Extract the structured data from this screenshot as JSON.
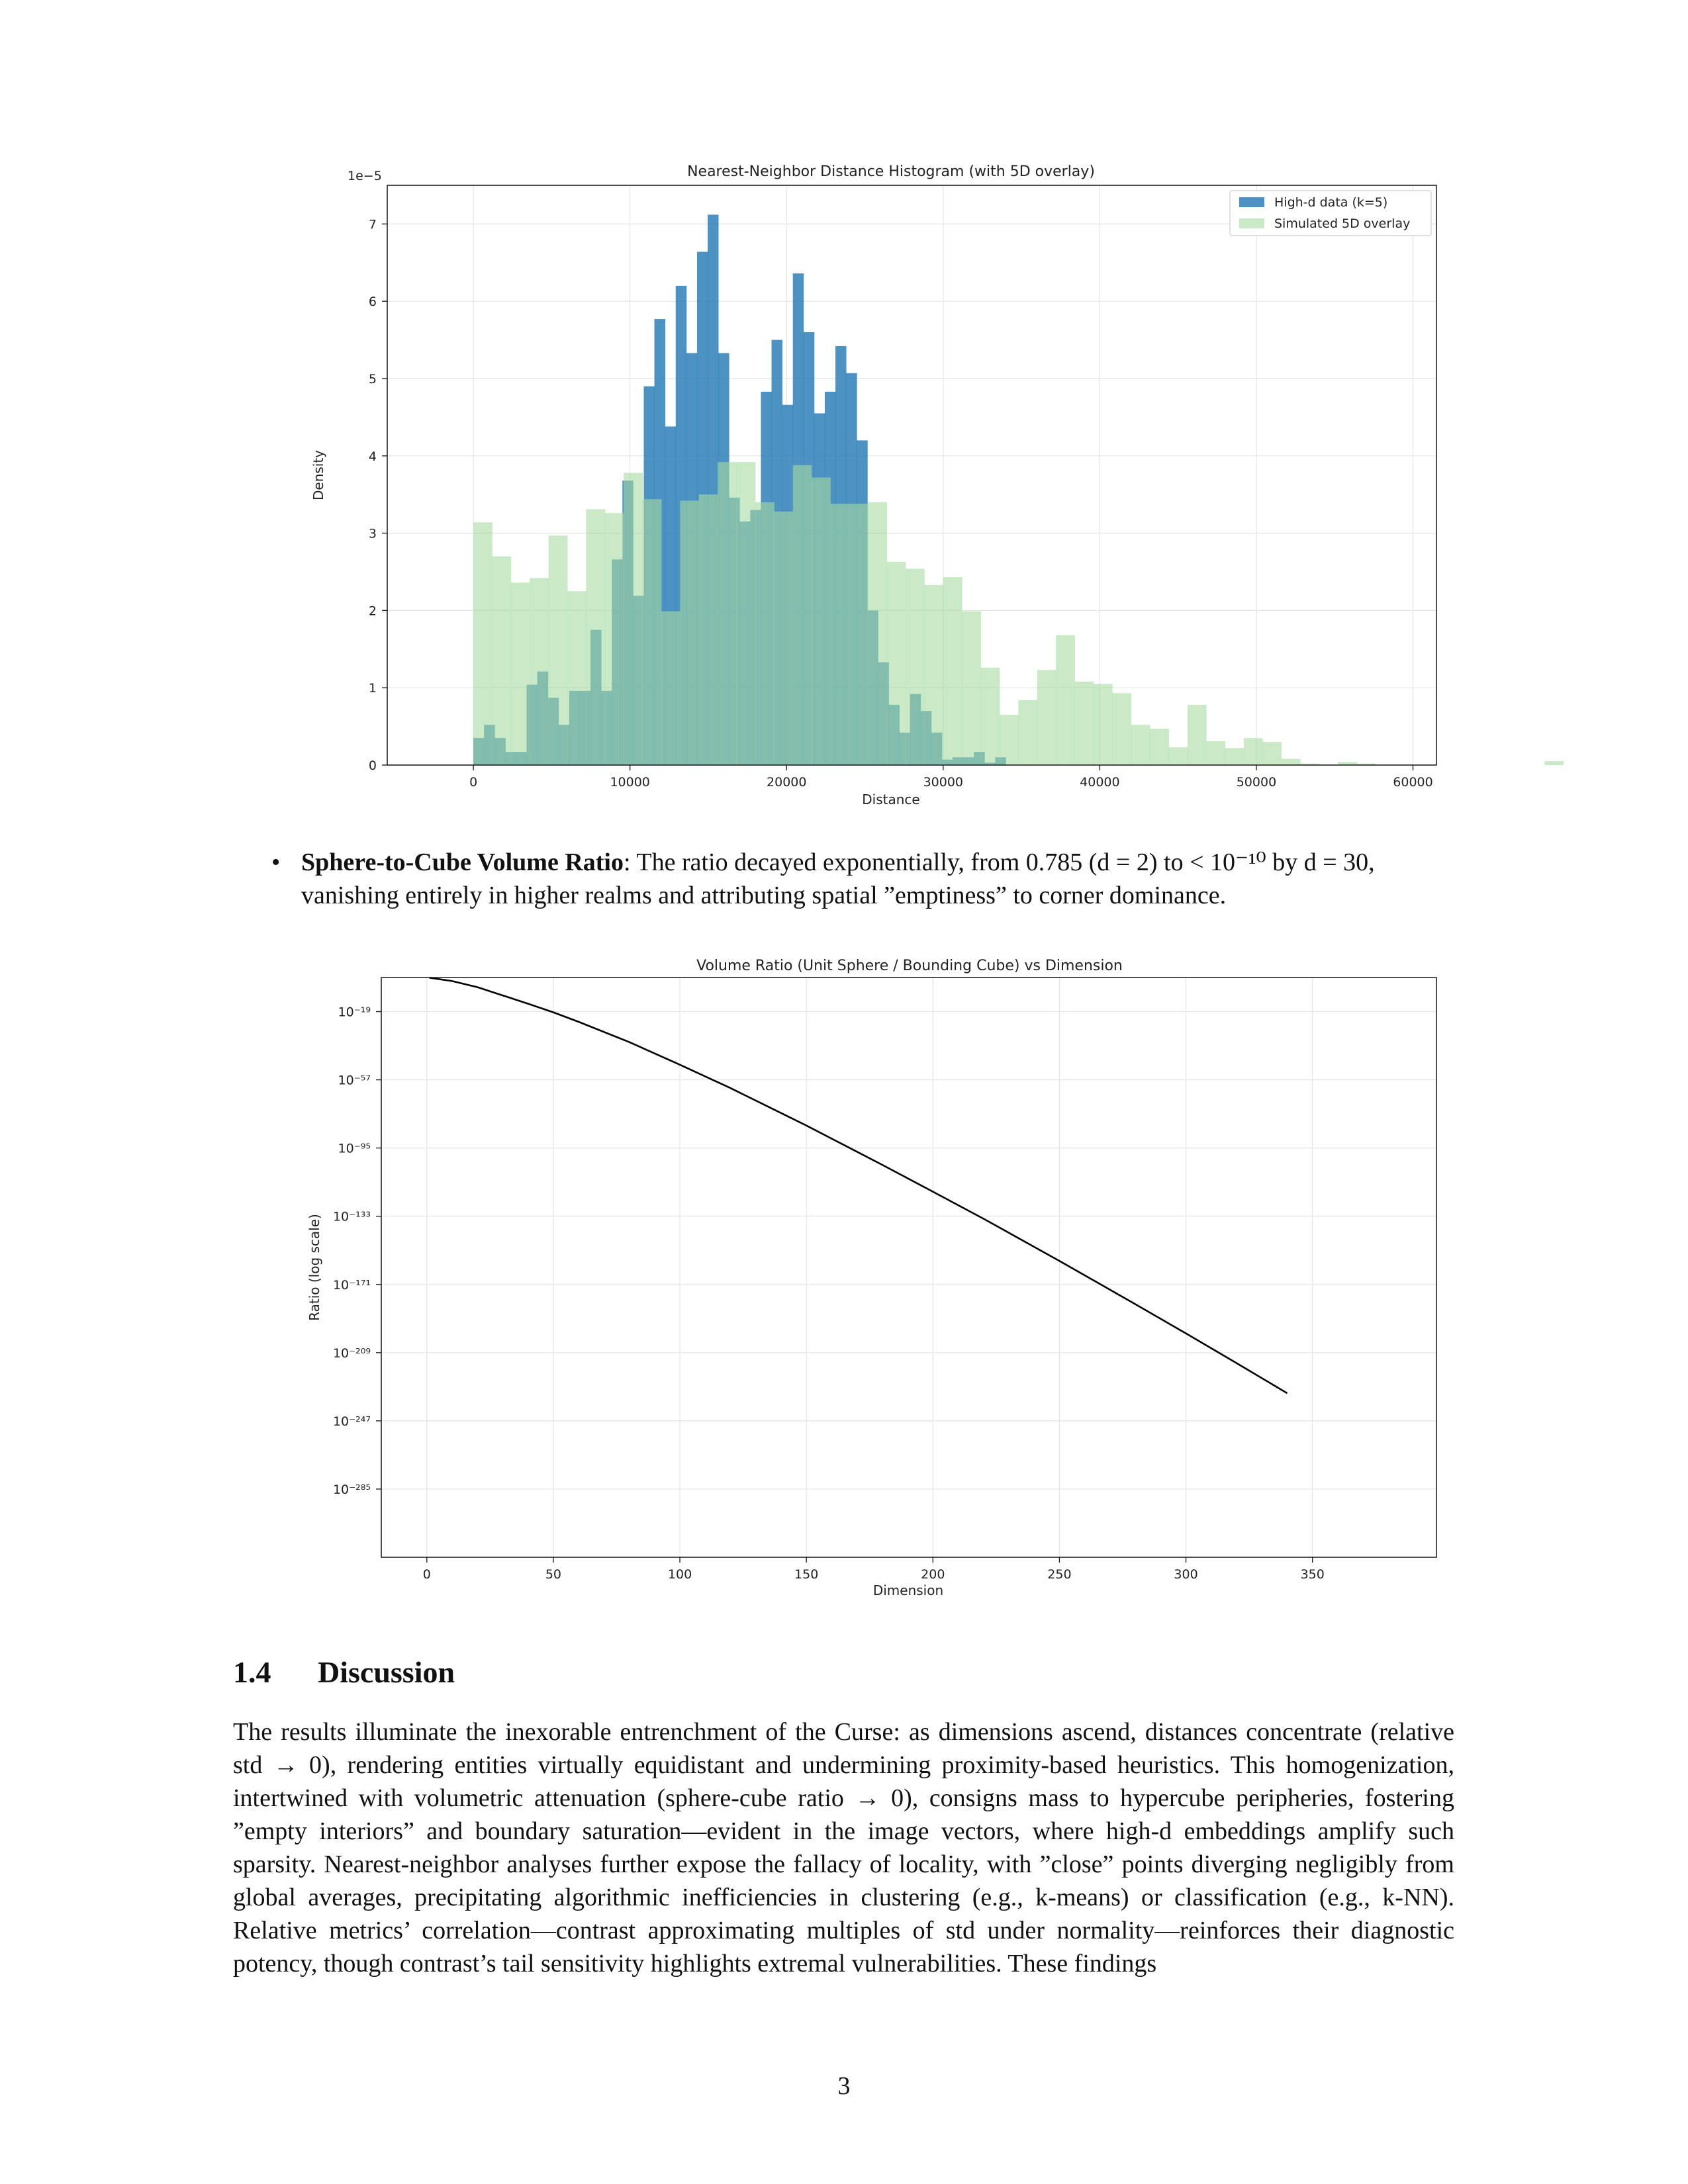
{
  "chart_data": [
    {
      "type": "bar",
      "title": "Nearest-Neighbor Distance Histogram (with 5D overlay)",
      "xlabel": "Distance",
      "ylabel": "Density",
      "offset_label": "1e−5",
      "xlim": [
        -5500,
        61500
      ],
      "ylim": [
        0,
        7.5
      ],
      "xticks": [
        0,
        10000,
        20000,
        30000,
        40000,
        50000,
        60000
      ],
      "yticks": [
        0,
        1,
        2,
        3,
        4,
        5,
        6,
        7
      ],
      "grid": true,
      "legend_position": "upper right",
      "series": [
        {
          "name": "High-d data (k=5)",
          "color": "#1f77b4",
          "bin_start": 0,
          "bin_width": 680,
          "values": [
            0.35,
            0.52,
            0.35,
            0.17,
            0.17,
            1.04,
            1.21,
            0.87,
            0.52,
            0.96,
            0.96,
            1.75,
            0.96,
            2.66,
            3.68,
            2.19,
            4.9,
            5.77,
            4.38,
            6.2,
            5.33,
            6.64,
            7.12,
            5.33,
            3.46,
            3.15,
            3.3,
            4.83,
            5.5,
            4.66,
            6.36,
            5.6,
            4.55,
            4.83,
            5.42,
            5.07,
            4.2,
            2.0,
            1.33,
            0.78,
            0.42,
            0.92,
            0.7,
            0.42,
            0.07,
            0.1,
            0.1,
            0.17,
            0.03,
            0.1
          ]
        },
        {
          "name": "Simulated 5D overlay",
          "color": "#a6dba0",
          "bin_start": 0,
          "bin_width": 1200,
          "values": [
            3.14,
            2.7,
            2.36,
            2.42,
            2.97,
            2.25,
            3.31,
            3.26,
            3.78,
            3.44,
            1.99,
            3.42,
            3.5,
            3.92,
            3.92,
            3.4,
            3.28,
            3.88,
            3.72,
            3.38,
            3.38,
            3.4,
            2.63,
            2.54,
            2.33,
            2.43,
            1.99,
            1.26,
            0.65,
            0.84,
            1.23,
            1.68,
            1.08,
            1.05,
            0.93,
            0.52,
            0.47,
            0.23,
            0.78,
            0.31,
            0.22,
            0.35,
            0.3,
            0.08,
            0.02,
            0,
            0.04,
            0.02,
            0,
            0,
            0,
            0,
            0,
            0,
            0,
            0,
            0,
            0.05,
            0
          ]
        }
      ]
    },
    {
      "type": "line",
      "title": "Volume Ratio (Unit Sphere / Bounding Cube) vs Dimension",
      "xlabel": "Dimension",
      "ylabel": "Ratio (log scale)",
      "yscale": "log",
      "xlim": [
        -18,
        399
      ],
      "ylim_exponent": [
        -323,
        0
      ],
      "xticks": [
        0,
        50,
        100,
        150,
        200,
        250,
        300,
        350
      ],
      "ytick_labels": [
        "10⁻¹⁹",
        "10⁻⁵⁷",
        "10⁻⁹⁵",
        "10⁻¹³³",
        "10⁻¹⁷¹",
        "10⁻²⁰⁹",
        "10⁻²⁴⁷",
        "10⁻²⁸⁵"
      ],
      "ytick_exponents": [
        -19,
        -57,
        -95,
        -133,
        -171,
        -209,
        -247,
        -285
      ],
      "grid": true,
      "series": [
        {
          "color": "#000000",
          "x": [
            1,
            10,
            20,
            30,
            40,
            50,
            60,
            80,
            100,
            120,
            150,
            180,
            200,
            220,
            250,
            280,
            300,
            320,
            340
          ],
          "log10_y": [
            -0.1,
            -2.0,
            -5.4,
            -10.0,
            -14.6,
            -19.4,
            -24.7,
            -36.0,
            -48.6,
            -61.6,
            -82.5,
            -104.4,
            -119.3,
            -134.4,
            -157.9,
            -182.0,
            -198.3,
            -214.8,
            -231.6
          ]
        }
      ]
    }
  ],
  "bullet": {
    "marker": "•",
    "bold_lead": "Sphere-to-Cube Volume Ratio",
    "text": ": The ratio decayed exponentially, from  0.785 (d = 2) to < 10⁻¹⁰ by d = 30, vanishing entirely in higher realms and attributing spatial ”emptiness” to corner dominance."
  },
  "section": {
    "number": "1.4",
    "title": "Discussion"
  },
  "discussion": "The results illuminate the inexorable entrenchment of the Curse: as dimensions ascend, distances concentrate (relative std → 0), rendering entities virtually equidistant and undermining proximity-based heuristics. This homogenization, intertwined with volumetric attenuation (sphere-cube ratio → 0), consigns mass to hypercube peripheries, fostering ”empty interiors” and boundary saturation—evident in the image vectors, where high-d embeddings amplify such sparsity. Nearest-neighbor analyses further expose the fallacy of locality, with ”close” points diverging negligibly from global averages, precipitating algorithmic inefficiencies in clustering (e.g., k-means) or classification (e.g., k-NN). Relative metrics’ correlation—contrast approximating multiples of std under normality—reinforces their diagnostic potency, though contrast’s tail sensitivity highlights extremal vulnerabilities.  These findings",
  "page_number": "3"
}
